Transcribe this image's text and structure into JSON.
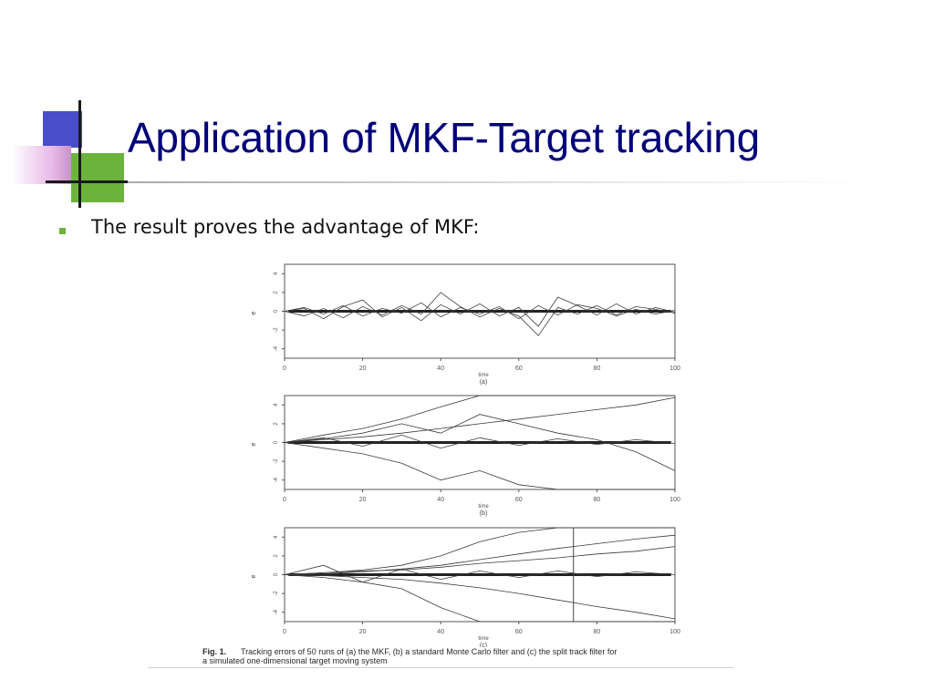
{
  "slide": {
    "title": "Application of MKF-Target tracking",
    "bullets": [
      "The result proves the advantage of MKF:"
    ]
  },
  "colors": {
    "title": "#00007a",
    "accent_blue": "#4a4ecb",
    "accent_green": "#6cb33b",
    "accent_pink": "#e6b7e6"
  },
  "figure": {
    "caption_label": "Fig. 1.",
    "caption_line1": "Tracking errors of 50 runs of (a) the MKF, (b) a standard Monte Carlo filter and (c) the split track filter for",
    "caption_line2": "a simulated one-dimensional target moving system"
  },
  "chart_data": [
    {
      "type": "line",
      "panel_label": "(a)",
      "xlabel": "time",
      "ylabel": "e",
      "x_ticks": [
        0,
        20,
        40,
        60,
        80,
        100
      ],
      "y_ticks": [
        4,
        2,
        0,
        -2,
        -4
      ],
      "xlim": [
        0,
        100
      ],
      "ylim": [
        -5,
        5
      ],
      "series": [
        {
          "x": [
            0,
            5,
            10,
            15,
            20,
            25,
            30,
            35,
            40,
            45,
            50,
            55,
            60,
            65,
            70,
            75,
            80,
            85,
            90,
            95,
            100
          ],
          "values": [
            0,
            0.4,
            -0.3,
            0.6,
            -0.5,
            0.3,
            -0.2,
            0.9,
            -0.6,
            0.4,
            -0.3,
            0.5,
            -0.8,
            0.6,
            -0.4,
            0.7,
            0.3,
            -0.5,
            0.2,
            -0.3,
            0.1
          ]
        },
        {
          "x": [
            0,
            5,
            10,
            15,
            20,
            25,
            30,
            35,
            40,
            45,
            50,
            55,
            60,
            65,
            70,
            75,
            80,
            85,
            90,
            95,
            100
          ],
          "values": [
            0,
            -0.5,
            0.3,
            -0.7,
            0.5,
            -0.4,
            0.6,
            -0.3,
            2.0,
            0.5,
            -0.6,
            0.3,
            -0.5,
            -2.6,
            0.4,
            -0.3,
            0.6,
            -0.4,
            0.5,
            0.2,
            -0.2
          ]
        },
        {
          "x": [
            0,
            5,
            10,
            15,
            20,
            25,
            30,
            35,
            40,
            45,
            50,
            55,
            60,
            65,
            70,
            75,
            80,
            85,
            90,
            95,
            100
          ],
          "values": [
            0,
            0.3,
            -0.8,
            0.5,
            1.2,
            -0.6,
            0.4,
            -1.0,
            0.7,
            -0.3,
            0.8,
            -0.5,
            0.4,
            -1.6,
            1.5,
            0.6,
            -0.4,
            0.8,
            -0.3,
            0.4,
            -0.1
          ]
        }
      ]
    },
    {
      "type": "line",
      "panel_label": "(b)",
      "xlabel": "time",
      "ylabel": "e",
      "x_ticks": [
        0,
        20,
        40,
        60,
        80,
        100
      ],
      "y_ticks": [
        4,
        2,
        0,
        -2,
        -4
      ],
      "xlim": [
        0,
        100
      ],
      "ylim": [
        -5,
        5
      ],
      "series": [
        {
          "x": [
            0,
            10,
            20,
            30,
            40,
            50,
            60,
            70,
            80,
            90,
            100
          ],
          "values": [
            0,
            0.5,
            -0.4,
            0.8,
            -0.6,
            0.5,
            -0.3,
            0.4,
            -0.2,
            0.3,
            -0.1
          ]
        },
        {
          "x": [
            0,
            10,
            20,
            30,
            40,
            50,
            60,
            70,
            80,
            90,
            100
          ],
          "values": [
            0,
            0.8,
            1.5,
            2.5,
            3.8,
            5.0,
            5.0,
            5.0,
            5.0,
            5.0,
            5.0
          ]
        },
        {
          "x": [
            0,
            10,
            20,
            30,
            40,
            50,
            60,
            70,
            80,
            90,
            100
          ],
          "values": [
            0,
            -0.6,
            -1.2,
            -2.2,
            -4.0,
            -3.0,
            -4.5,
            -5.0,
            -5.0,
            -5.0,
            -5.0
          ]
        },
        {
          "x": [
            0,
            10,
            20,
            30,
            40,
            50,
            60,
            70,
            80,
            90,
            100
          ],
          "values": [
            0,
            0.4,
            1.0,
            2.0,
            1.0,
            3.0,
            2.0,
            1.0,
            0.3,
            -1.0,
            -3.0
          ]
        },
        {
          "x": [
            0,
            10,
            20,
            30,
            40,
            50,
            60,
            70,
            80,
            90,
            100
          ],
          "values": [
            0,
            0.3,
            0.6,
            1.0,
            1.5,
            2.0,
            2.5,
            3.0,
            3.5,
            4.0,
            4.8
          ]
        }
      ]
    },
    {
      "type": "line",
      "panel_label": "(c)",
      "xlabel": "time",
      "ylabel": "e",
      "x_ticks": [
        0,
        20,
        40,
        60,
        80,
        100
      ],
      "y_ticks": [
        4,
        2,
        0,
        -2,
        -4
      ],
      "xlim": [
        0,
        100
      ],
      "ylim": [
        -5,
        5
      ],
      "series": [
        {
          "x": [
            0,
            10,
            20,
            30,
            40,
            50,
            60,
            70,
            80,
            90,
            100
          ],
          "values": [
            0,
            1.0,
            -0.8,
            0.6,
            -0.5,
            0.4,
            -0.3,
            0.4,
            -0.2,
            0.3,
            0.0
          ]
        },
        {
          "x": [
            0,
            10,
            20,
            30,
            40,
            50,
            60,
            70,
            80,
            90,
            100
          ],
          "values": [
            0,
            0.2,
            0.5,
            1.0,
            2.0,
            3.5,
            4.5,
            5.0,
            5.0,
            5.0,
            5.0
          ]
        },
        {
          "x": [
            0,
            10,
            20,
            30,
            40,
            50,
            60,
            70,
            80,
            90,
            100
          ],
          "values": [
            0,
            -0.3,
            -0.8,
            -1.5,
            -3.5,
            -5.0,
            -5.0,
            -5.0,
            -5.0,
            -5.0,
            -5.0
          ]
        },
        {
          "x": [
            0,
            10,
            20,
            30,
            40,
            50,
            60,
            70,
            80,
            90,
            100
          ],
          "values": [
            0,
            0.1,
            0.3,
            0.6,
            1.0,
            1.6,
            2.2,
            2.8,
            3.3,
            3.8,
            4.2
          ]
        },
        {
          "x": [
            0,
            10,
            20,
            30,
            40,
            50,
            60,
            70,
            80,
            90,
            100
          ],
          "values": [
            0,
            -0.1,
            -0.3,
            -0.5,
            -0.9,
            -1.4,
            -2.0,
            -2.7,
            -3.4,
            -4.0,
            -4.7
          ]
        },
        {
          "x": [
            0,
            10,
            20,
            30,
            40,
            50,
            60,
            70,
            80,
            90,
            100
          ],
          "values": [
            0,
            0.2,
            0.4,
            0.5,
            0.8,
            1.2,
            1.5,
            1.8,
            2.2,
            2.5,
            3.0
          ]
        }
      ]
    }
  ]
}
